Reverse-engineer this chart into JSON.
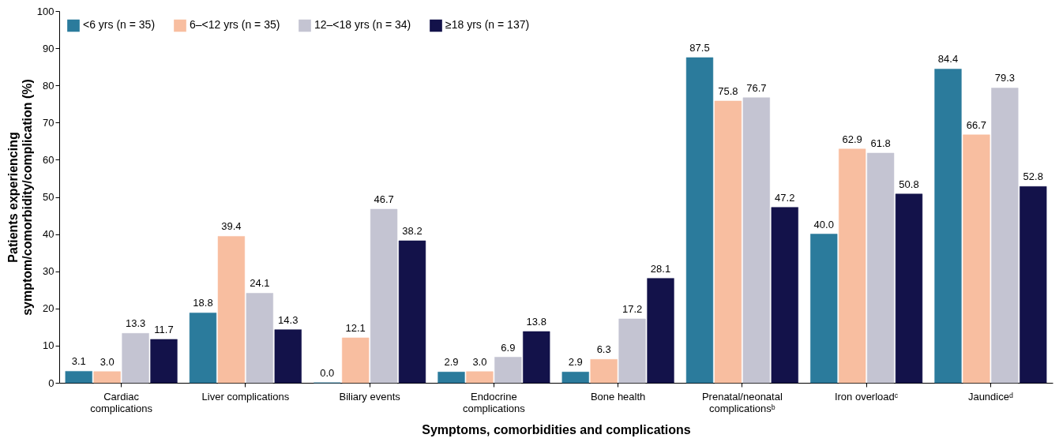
{
  "chart_data": {
    "type": "bar",
    "xlabel": "Symptoms, comorbidities and complications",
    "ylabel": "Patients experiencing\nsymptom/comorbidity/complication (%)",
    "categories": [
      "Cardiac\ncomplications",
      "Liver complications",
      "Biliary events",
      "Endocrine\ncomplications",
      "Bone health",
      "Prenatal/neonatal\ncomplicationsᵇ",
      "Iron overloadᶜ",
      "Jaundiceᵈ"
    ],
    "series": [
      {
        "name": "<6 yrs (n = 35)",
        "color": "#2b7b9c",
        "values": [
          3.1,
          18.8,
          0.0,
          2.9,
          2.9,
          87.5,
          40.0,
          84.4
        ],
        "value_labels": [
          "3.1",
          "18.8",
          "0.0",
          "2.9",
          "2.9",
          "87.5",
          "40.0",
          "84.4"
        ]
      },
      {
        "name": "6–<12 yrs (n = 35)",
        "color": "#f8bea0",
        "values": [
          3.0,
          39.4,
          12.1,
          3.0,
          6.3,
          75.8,
          62.9,
          66.7
        ],
        "value_labels": [
          "3.0",
          "39.4",
          "12.1",
          "3.0",
          "6.3",
          "75.8",
          "62.9",
          "66.7"
        ]
      },
      {
        "name": "12–<18 yrs (n = 34)",
        "color": "#c4c4d2",
        "values": [
          13.3,
          24.1,
          46.7,
          6.9,
          17.2,
          76.7,
          61.8,
          79.3
        ],
        "value_labels": [
          "13.3",
          "24.1",
          "46.7",
          "6.9",
          "17.2",
          "76.7",
          "61.8",
          "79.3"
        ]
      },
      {
        "name": "≥18 yrs (n = 137)",
        "color": "#13124a",
        "values": [
          11.7,
          14.3,
          38.2,
          13.8,
          28.1,
          47.2,
          50.8,
          52.8
        ],
        "value_labels": [
          "11.7",
          "14.3",
          "38.2",
          "13.8",
          "28.1",
          "47.2",
          "50.8",
          "52.8"
        ]
      }
    ],
    "ylim": [
      0,
      100
    ],
    "yticks": [
      0,
      10,
      20,
      30,
      40,
      50,
      60,
      70,
      80,
      90,
      100
    ],
    "grid": false,
    "legend": "top left"
  }
}
